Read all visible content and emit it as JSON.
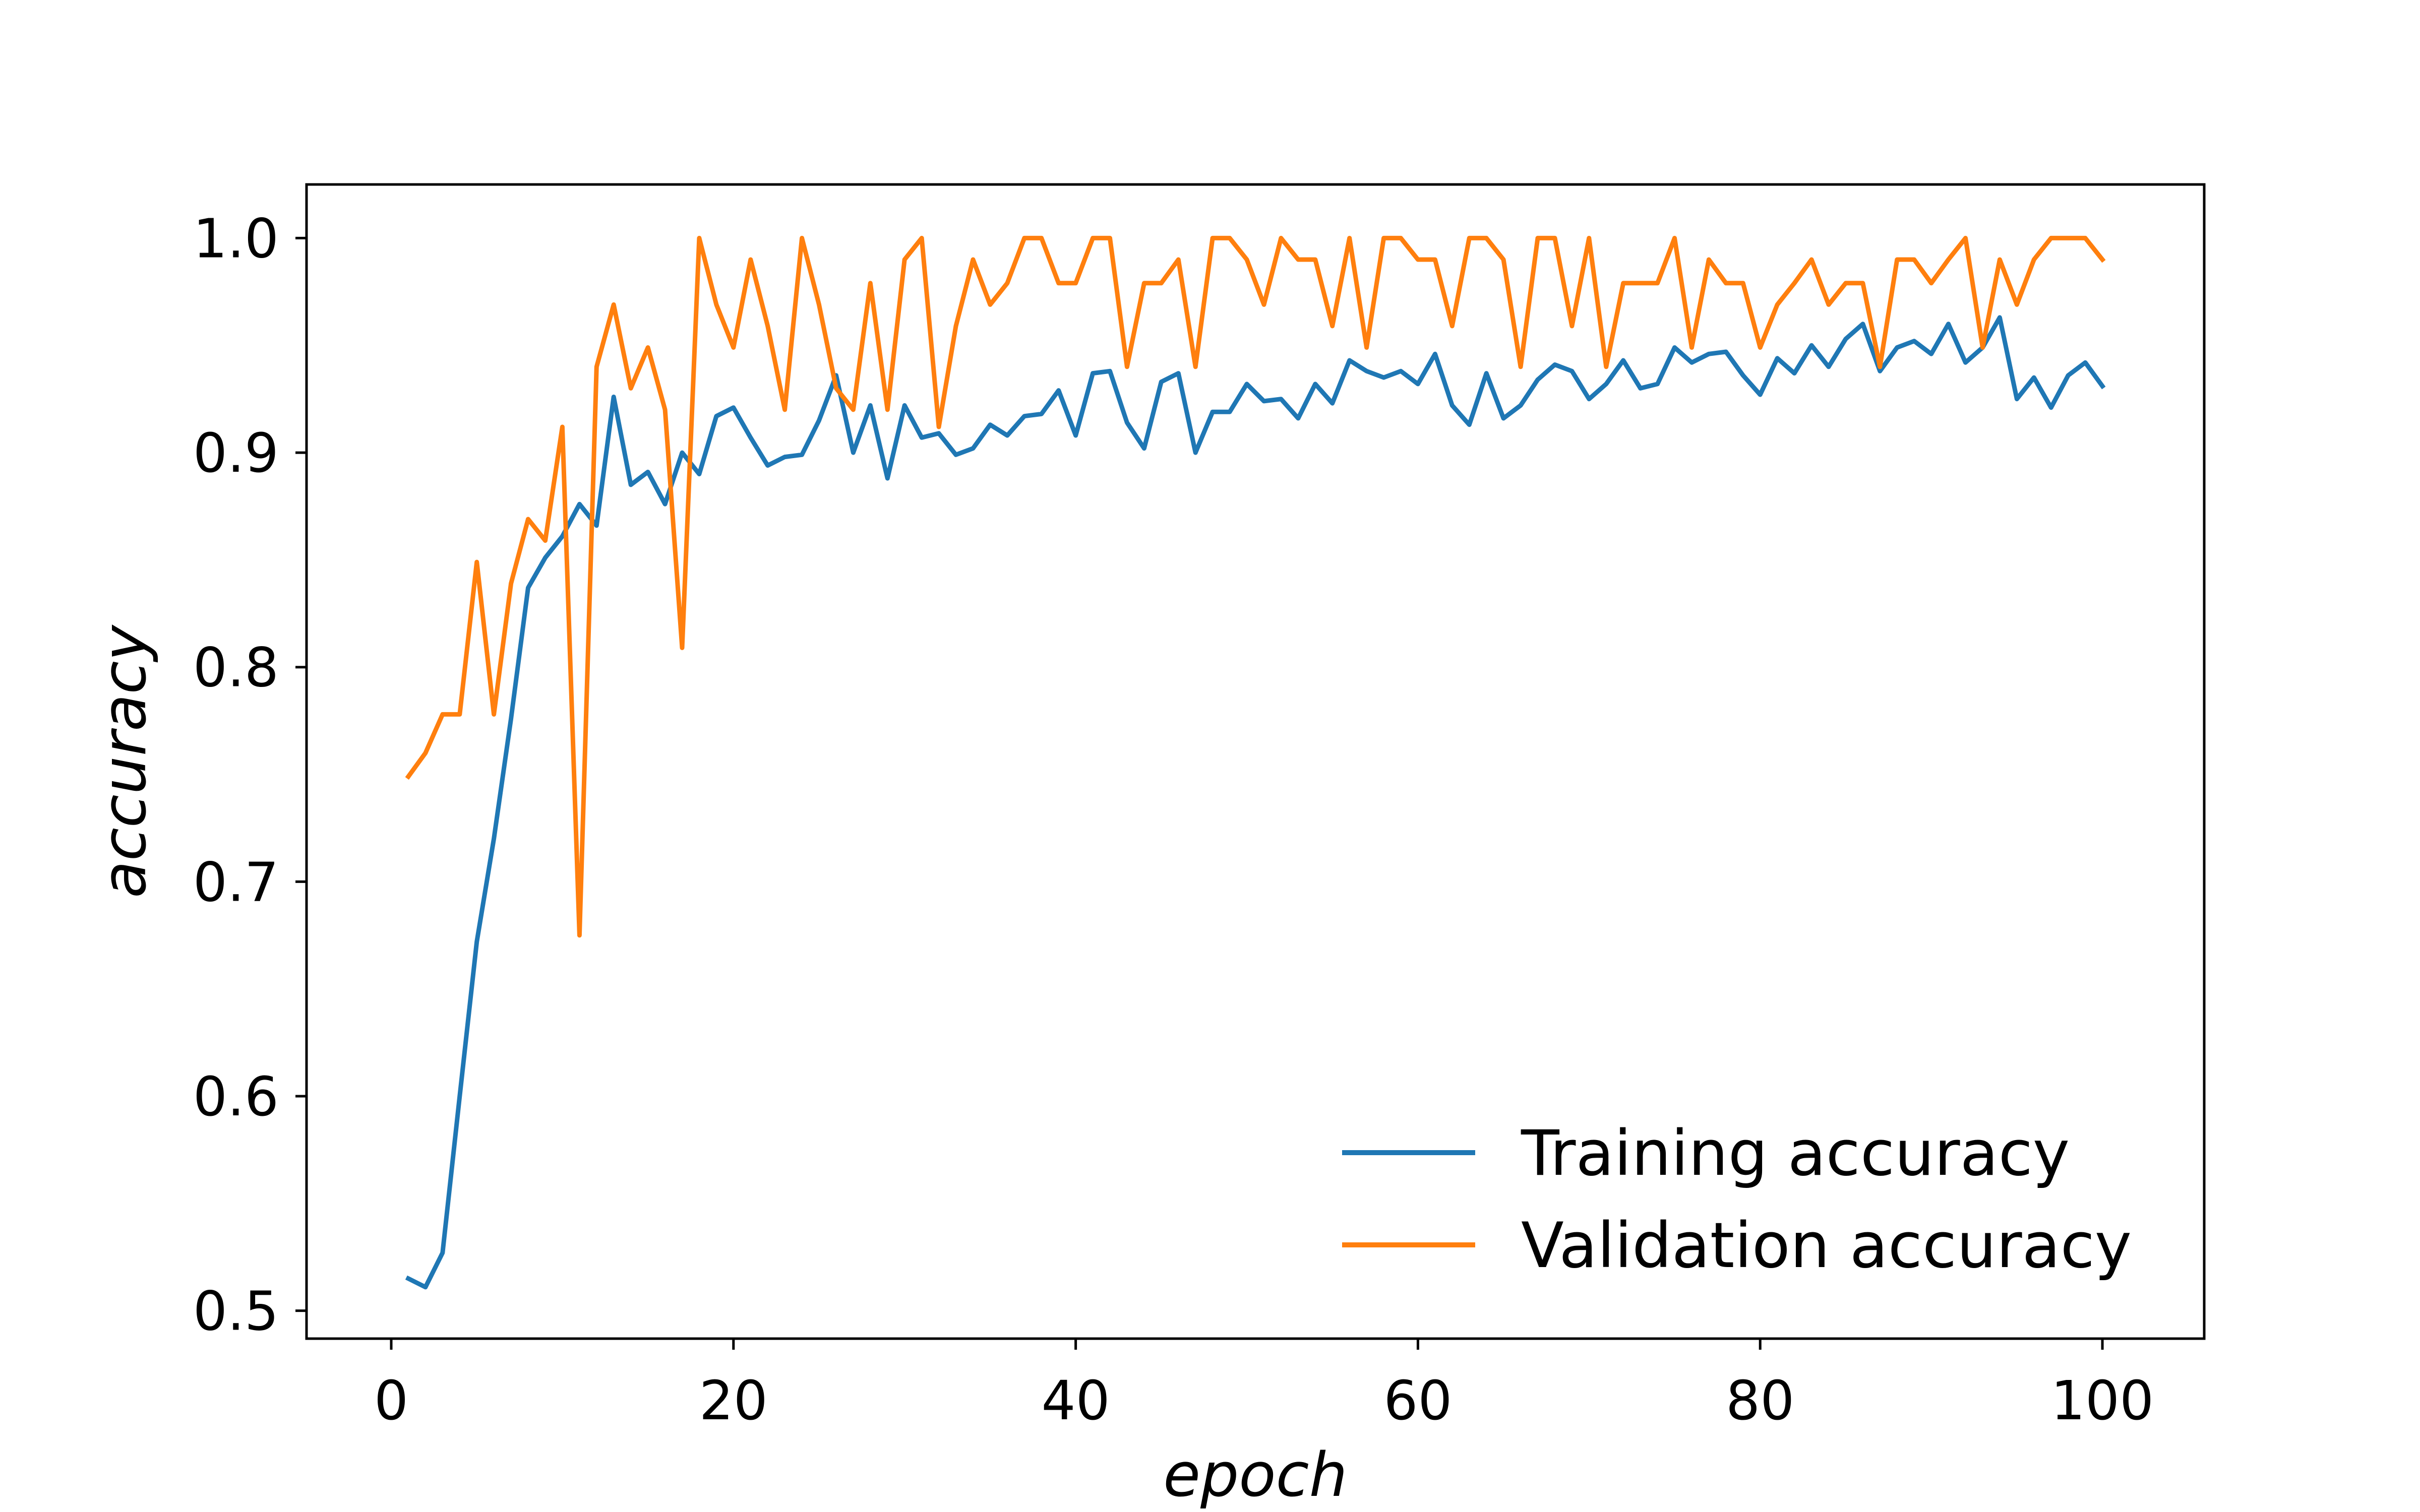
{
  "chart_data": {
    "type": "line",
    "title": "",
    "xlabel": "epoch",
    "ylabel": "accuracy",
    "xlim": [
      -4.95,
      105.95
    ],
    "ylim": [
      0.487,
      1.025
    ],
    "xticks": [
      0,
      20,
      40,
      60,
      80,
      100
    ],
    "xtick_labels": [
      "0",
      "20",
      "40",
      "60",
      "80",
      "100"
    ],
    "yticks": [
      0.5,
      0.6,
      0.7,
      0.8,
      0.9,
      1.0
    ],
    "ytick_labels": [
      "0.5",
      "0.6",
      "0.7",
      "0.8",
      "0.9",
      "1.0"
    ],
    "grid": false,
    "legend_position": "lower-right",
    "x": [
      1,
      2,
      3,
      4,
      5,
      6,
      7,
      8,
      9,
      10,
      11,
      12,
      13,
      14,
      15,
      16,
      17,
      18,
      19,
      20,
      21,
      22,
      23,
      24,
      25,
      26,
      27,
      28,
      29,
      30,
      31,
      32,
      33,
      34,
      35,
      36,
      37,
      38,
      39,
      40,
      41,
      42,
      43,
      44,
      45,
      46,
      47,
      48,
      49,
      50,
      51,
      52,
      53,
      54,
      55,
      56,
      57,
      58,
      59,
      60,
      61,
      62,
      63,
      64,
      65,
      66,
      67,
      68,
      69,
      70,
      71,
      72,
      73,
      74,
      75,
      76,
      77,
      78,
      79,
      80,
      81,
      82,
      83,
      84,
      85,
      86,
      87,
      88,
      89,
      90,
      91,
      92,
      93,
      94,
      95,
      96,
      97,
      98,
      99,
      100
    ],
    "series": [
      {
        "name": "Training accuracy",
        "color": "#1f77b4",
        "values": [
          0.515,
          0.511,
          0.527,
          0.6,
          0.672,
          0.72,
          0.776,
          0.837,
          0.851,
          0.861,
          0.876,
          0.866,
          0.926,
          0.885,
          0.891,
          0.876,
          0.9,
          0.89,
          0.917,
          0.921,
          0.907,
          0.894,
          0.898,
          0.899,
          0.915,
          0.936,
          0.9,
          0.922,
          0.888,
          0.922,
          0.907,
          0.909,
          0.899,
          0.902,
          0.913,
          0.908,
          0.917,
          0.918,
          0.929,
          0.908,
          0.937,
          0.938,
          0.914,
          0.902,
          0.933,
          0.937,
          0.9,
          0.919,
          0.919,
          0.932,
          0.924,
          0.925,
          0.916,
          0.932,
          0.923,
          0.943,
          0.938,
          0.935,
          0.938,
          0.932,
          0.946,
          0.922,
          0.913,
          0.937,
          0.916,
          0.922,
          0.934,
          0.941,
          0.938,
          0.925,
          0.932,
          0.943,
          0.93,
          0.932,
          0.949,
          0.942,
          0.946,
          0.947,
          0.936,
          0.927,
          0.944,
          0.937,
          0.95,
          0.94,
          0.953,
          0.96,
          0.938,
          0.949,
          0.952,
          0.946,
          0.96,
          0.942,
          0.949,
          0.963,
          0.925,
          0.935,
          0.921,
          0.936,
          0.942,
          0.931
        ]
      },
      {
        "name": "Validation accuracy",
        "color": "#ff7f0e",
        "values": [
          0.749,
          0.76,
          0.778,
          0.778,
          0.849,
          0.778,
          0.839,
          0.869,
          0.859,
          0.912,
          0.675,
          0.94,
          0.969,
          0.93,
          0.949,
          0.92,
          0.809,
          1.0,
          0.969,
          0.949,
          0.99,
          0.959,
          0.92,
          1.0,
          0.969,
          0.93,
          0.92,
          0.979,
          0.92,
          0.99,
          1.0,
          0.912,
          0.959,
          0.99,
          0.969,
          0.979,
          1.0,
          1.0,
          0.979,
          0.979,
          1.0,
          1.0,
          0.94,
          0.979,
          0.979,
          0.99,
          0.94,
          1.0,
          1.0,
          0.99,
          0.969,
          1.0,
          0.99,
          0.99,
          0.959,
          1.0,
          0.949,
          1.0,
          1.0,
          0.99,
          0.99,
          0.959,
          1.0,
          1.0,
          0.99,
          0.94,
          1.0,
          1.0,
          0.959,
          1.0,
          0.94,
          0.979,
          0.979,
          0.979,
          1.0,
          0.949,
          0.99,
          0.979,
          0.979,
          0.949,
          0.969,
          0.979,
          0.99,
          0.969,
          0.979,
          0.979,
          0.94,
          0.99,
          0.99,
          0.979,
          0.99,
          1.0,
          0.949,
          0.99,
          0.969,
          0.99,
          1.0,
          1.0,
          1.0,
          0.99
        ]
      }
    ]
  }
}
